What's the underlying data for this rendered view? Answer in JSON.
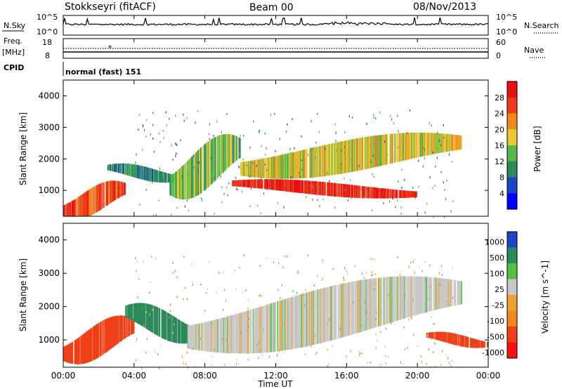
{
  "header": {
    "station": "Stokkseyri (fitACF)",
    "beam": "Beam 00",
    "date": "08/Nov/2013"
  },
  "noise_panel": {
    "left_label": "N.Sky",
    "right_label": "N.Search",
    "ticks_left": [
      "10^5",
      "10^0"
    ],
    "ticks_right": [
      "10^5",
      "10^0"
    ]
  },
  "freq_panel": {
    "left_label_1": "Freq.",
    "left_label_2": "[MHz]",
    "right_label": "Nave",
    "ticks_left": [
      "18",
      "8"
    ],
    "ticks_right": [
      "60",
      "0"
    ]
  },
  "cpid": {
    "label": "CPID",
    "value": "normal (fast) 151"
  },
  "x_axis": {
    "label": "Time UT",
    "ticks": [
      "00:00",
      "04:00",
      "08:00",
      "12:00",
      "16:00",
      "20:00",
      "00:00"
    ]
  },
  "colors": {
    "power_scale": [
      "#0000ff",
      "#1a47c8",
      "#2d8a5a",
      "#55b84a",
      "#e8c832",
      "#f08a1e",
      "#ee3a1a",
      "#e81010"
    ],
    "velocity_scale": [
      "#ff1010",
      "#f04018",
      "#f08a1e",
      "#f0a030",
      "#c8c8c8",
      "#55c040",
      "#2d8a5a",
      "#1a47c8"
    ]
  },
  "chart_data": [
    {
      "type": "heatmap",
      "panel": "power",
      "ylabel": "Slant Range [km]",
      "xlabel": "",
      "xlim_hours": [
        0,
        24
      ],
      "ylim": [
        180,
        4500
      ],
      "y_ticks": [
        "1000",
        "2000",
        "3000",
        "4000"
      ],
      "colorbar": {
        "label": "Power [dB]",
        "ticks": [
          "4",
          "8",
          "12",
          "16",
          "20",
          "24",
          "28"
        ]
      },
      "features": [
        {
          "name": "low-range band",
          "hours": [
            0,
            3.5
          ],
          "range_km": [
            200,
            1200
          ],
          "value_db": 26
        },
        {
          "name": "evening band",
          "hours": [
            2.5,
            6.5
          ],
          "range_km": [
            1300,
            1800
          ],
          "value_db": 10
        },
        {
          "name": "arc",
          "hours": [
            6,
            10
          ],
          "range_km": [
            900,
            2600
          ],
          "value_db": 14
        },
        {
          "name": "main strong band",
          "hours": [
            9.5,
            20
          ],
          "range_km": [
            800,
            1300
          ],
          "value_db": 28
        },
        {
          "name": "upper arc",
          "hours": [
            10,
            22.5
          ],
          "range_km": [
            1500,
            2700
          ],
          "value_db": 18
        }
      ]
    },
    {
      "type": "heatmap",
      "panel": "velocity",
      "ylabel": "Slant Range [km]",
      "xlabel": "Time UT",
      "xlim_hours": [
        0,
        24
      ],
      "ylim": [
        180,
        4500
      ],
      "y_ticks": [
        "1000",
        "2000",
        "3000",
        "4000"
      ],
      "colorbar": {
        "label": "Velocity  [m s^-1]",
        "ticks": [
          "1000",
          "500",
          "100",
          "25",
          "-25",
          "-100",
          "-500",
          "-1000"
        ]
      },
      "features": [
        {
          "name": "early orange",
          "hours": [
            0,
            4
          ],
          "range_km": [
            400,
            1600
          ],
          "value_ms": -150
        },
        {
          "name": "green band",
          "hours": [
            3.5,
            7.5
          ],
          "range_km": [
            1000,
            2000
          ],
          "value_ms": 200
        },
        {
          "name": "grey arc",
          "hours": [
            7,
            22.5
          ],
          "range_km": [
            800,
            2700
          ],
          "value_ms": 0
        },
        {
          "name": "late orange",
          "hours": [
            20.5,
            24
          ],
          "range_km": [
            800,
            1200
          ],
          "value_ms": -200
        }
      ]
    }
  ]
}
